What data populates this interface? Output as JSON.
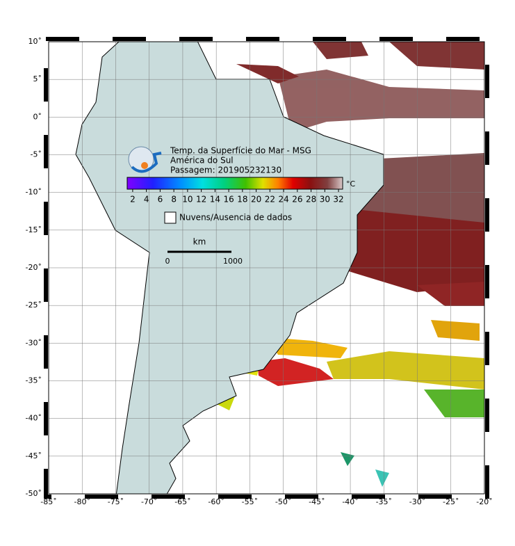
{
  "map": {
    "title_lines": [
      "Temp. da Superfície do Mar - MSG",
      "América do Sul",
      "Passagem: 201905232130"
    ],
    "lonlim": [
      -85,
      -20
    ],
    "latlim": [
      -50,
      10
    ],
    "lonticks": [
      {
        "value": -85,
        "label": "-85˚"
      },
      {
        "value": -80,
        "label": "-80˚"
      },
      {
        "value": -75,
        "label": "-75˚"
      },
      {
        "value": -70,
        "label": "-70˚"
      },
      {
        "value": -65,
        "label": "-65˚"
      },
      {
        "value": -60,
        "label": "-60˚"
      },
      {
        "value": -55,
        "label": "-55˚"
      },
      {
        "value": -50,
        "label": "-50˚"
      },
      {
        "value": -45,
        "label": "-45˚"
      },
      {
        "value": -40,
        "label": "-40˚"
      },
      {
        "value": -35,
        "label": "-35˚"
      },
      {
        "value": -30,
        "label": "-30˚"
      },
      {
        "value": -25,
        "label": "-25˚"
      },
      {
        "value": -20,
        "label": "-20˚"
      }
    ],
    "latticks": [
      {
        "value": 10,
        "label": "10˚"
      },
      {
        "value": 5,
        "label": "5˚"
      },
      {
        "value": 0,
        "label": "0˚"
      },
      {
        "value": -5,
        "label": "-5˚"
      },
      {
        "value": -10,
        "label": "-10˚"
      },
      {
        "value": -15,
        "label": "-15˚"
      },
      {
        "value": -20,
        "label": "-20˚"
      },
      {
        "value": -25,
        "label": "-25˚"
      },
      {
        "value": -30,
        "label": "-30˚"
      },
      {
        "value": -35,
        "label": "-35˚"
      },
      {
        "value": -40,
        "label": "-40˚"
      },
      {
        "value": -45,
        "label": "-45˚"
      },
      {
        "value": -50,
        "label": "-50˚"
      }
    ],
    "colorbar": {
      "unit": "°C",
      "range": [
        1.2,
        32.6
      ],
      "ticks": [
        2,
        4,
        6,
        8,
        10,
        12,
        14,
        16,
        18,
        20,
        22,
        24,
        26,
        28,
        30,
        32
      ]
    },
    "legend": "Nuvens/Ausencia de dados",
    "scale": {
      "unit": "km",
      "labels": [
        "0",
        "1000"
      ]
    }
  }
}
